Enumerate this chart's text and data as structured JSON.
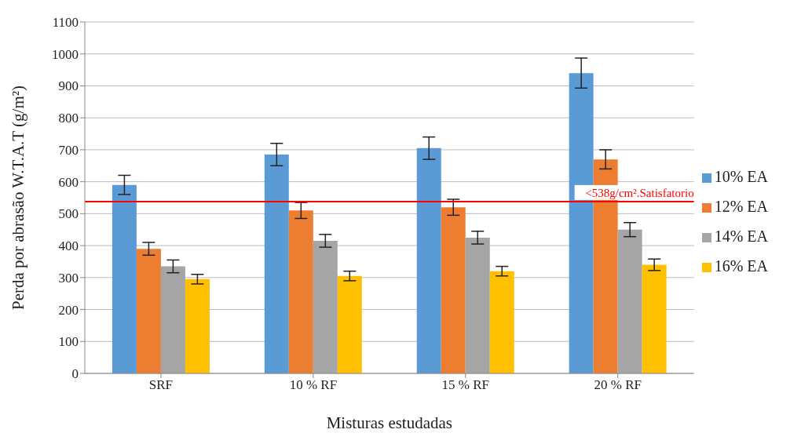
{
  "chart_data": {
    "type": "bar",
    "xlabel": "Misturas estudadas",
    "ylabel": "Perda por abrasão W.T.A.T  (g/m²)",
    "categories": [
      "SRF",
      "10 % RF",
      "15 % RF",
      "20 % RF"
    ],
    "series": [
      {
        "name": "10% EA",
        "color": "#5b9bd5",
        "values": [
          590,
          685,
          705,
          940
        ],
        "errors": [
          30,
          35,
          35,
          47
        ]
      },
      {
        "name": "12% EA",
        "color": "#ed7d31",
        "values": [
          390,
          510,
          520,
          670
        ],
        "errors": [
          20,
          25,
          25,
          30
        ]
      },
      {
        "name": "14% EA",
        "color": "#a5a5a5",
        "values": [
          335,
          415,
          425,
          450
        ],
        "errors": [
          20,
          20,
          20,
          22
        ]
      },
      {
        "name": "16% EA",
        "color": "#ffc000",
        "values": [
          295,
          305,
          320,
          340
        ],
        "errors": [
          15,
          15,
          15,
          18
        ]
      }
    ],
    "ylim": [
      0,
      1100
    ],
    "yticks": [
      0,
      100,
      200,
      300,
      400,
      500,
      600,
      700,
      800,
      900,
      1000,
      1100
    ],
    "grid": "y",
    "legend": "right",
    "ref_lines": [
      {
        "axis": "y",
        "value": 538,
        "label": "<538g/cm².Satisfatorio",
        "color": "#ff0000"
      }
    ]
  }
}
